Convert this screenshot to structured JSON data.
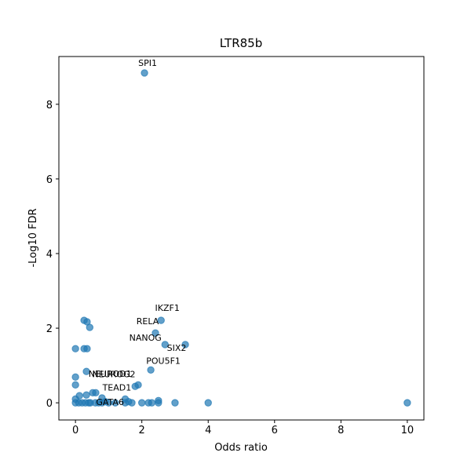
{
  "chart_data": {
    "type": "scatter",
    "title": "LTR85b",
    "x_label": "Odds ratio",
    "y_label": "-Log10 FDR",
    "xlim": [
      -0.5,
      10.5
    ],
    "ylim": [
      -0.46,
      9.28
    ],
    "xticks": [
      0,
      2,
      4,
      6,
      8,
      10
    ],
    "yticks": [
      0,
      2,
      4,
      6,
      8
    ],
    "color": "#1f77b4",
    "x": [
      2.08,
      2.58,
      2.41,
      2.7,
      3.31,
      2.27,
      1.89,
      1.8,
      0.61,
      0.45,
      0.26,
      0.35,
      0.43,
      0,
      0.26,
      0.35,
      0.33,
      0,
      0,
      0.52,
      0.12,
      0.33,
      0.8,
      1.5,
      2.5,
      0,
      0,
      0.1,
      0.2,
      0.3,
      0.4,
      0.6,
      0.7,
      0.8,
      1,
      1.2,
      1.5,
      1.7,
      2,
      2.2,
      2.3,
      2.5,
      3,
      4,
      10,
      1.6,
      0.9
    ],
    "values": [
      8.84,
      2.21,
      1.87,
      1.56,
      1.56,
      0.88,
      0.48,
      0.44,
      0.27,
      0,
      2.21,
      2.17,
      2.02,
      1.45,
      1.45,
      1.45,
      0.84,
      0.69,
      0.48,
      0.27,
      0.19,
      0.21,
      0.13,
      0.1,
      0.06,
      0.1,
      0,
      0,
      0,
      0,
      0,
      0,
      0,
      0,
      0,
      0,
      0,
      0,
      0,
      0,
      0,
      0,
      0,
      0,
      0,
      0.03,
      0.03
    ],
    "labels": [
      "SPI1",
      "IKZF1",
      "RELA",
      "NANOG",
      "SIX2",
      "POU5F1",
      "NEUROG2",
      "NEUROD1",
      "TEAD1",
      "GATA6",
      null,
      null,
      null,
      null,
      null,
      null,
      null,
      null,
      null,
      null,
      null,
      null,
      null,
      null,
      null,
      null,
      null,
      null,
      null,
      null,
      null,
      null,
      null,
      null,
      null,
      null,
      null,
      null,
      null,
      null,
      null,
      null,
      null,
      null,
      null,
      null,
      null
    ]
  }
}
